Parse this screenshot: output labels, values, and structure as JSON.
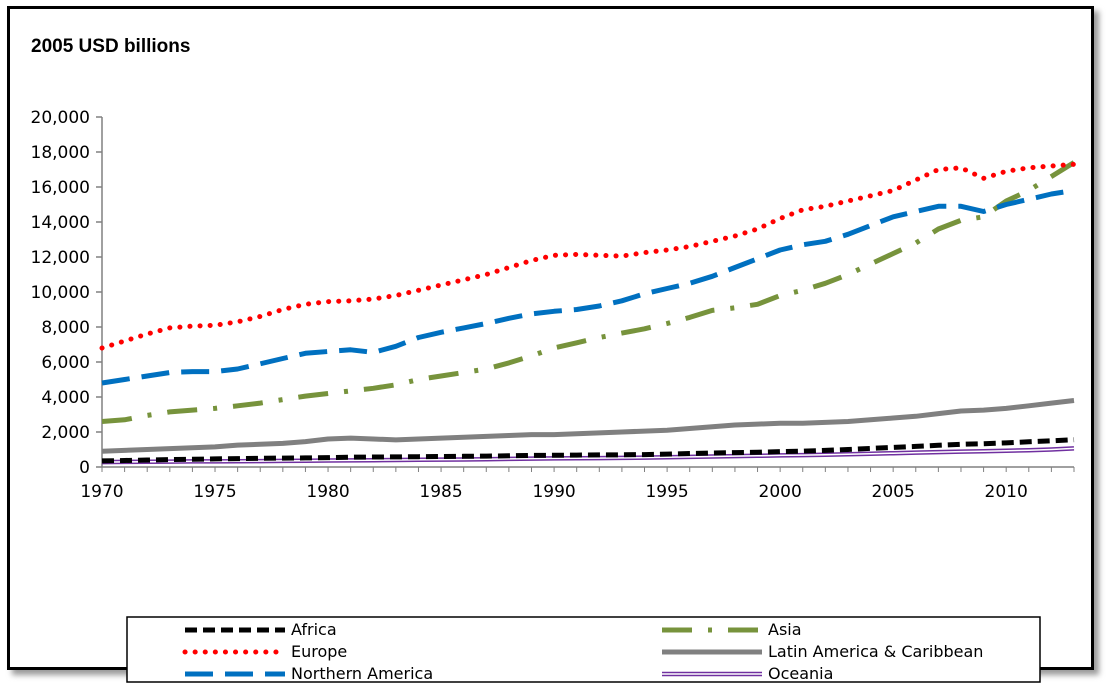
{
  "chart_data": {
    "type": "line",
    "title": "2005 USD billions",
    "xlabel": "",
    "ylabel": "",
    "xlim": [
      1970,
      2013
    ],
    "ylim": [
      0,
      20000
    ],
    "x_ticks": [
      1970,
      1975,
      1980,
      1985,
      1990,
      1995,
      2000,
      2005,
      2010
    ],
    "y_ticks": [
      0,
      2000,
      4000,
      6000,
      8000,
      10000,
      12000,
      14000,
      16000,
      18000,
      20000
    ],
    "y_tick_labels": [
      "0",
      "2,000",
      "4,000",
      "6,000",
      "8,000",
      "10,000",
      "12,000",
      "14,000",
      "16,000",
      "18,000",
      "20,000"
    ],
    "grid": false,
    "legend_position": "bottom",
    "x": [
      1970,
      1971,
      1972,
      1973,
      1974,
      1975,
      1976,
      1977,
      1978,
      1979,
      1980,
      1981,
      1982,
      1983,
      1984,
      1985,
      1986,
      1987,
      1988,
      1989,
      1990,
      1991,
      1992,
      1993,
      1994,
      1995,
      1996,
      1997,
      1998,
      1999,
      2000,
      2001,
      2002,
      2003,
      2004,
      2005,
      2006,
      2007,
      2008,
      2009,
      2010,
      2011,
      2012,
      2013
    ],
    "series": [
      {
        "name": "Africa",
        "color": "#000000",
        "style": "short-dash",
        "values": [
          350,
          370,
          400,
          420,
          440,
          460,
          480,
          500,
          510,
          520,
          540,
          560,
          570,
          580,
          590,
          600,
          610,
          620,
          640,
          660,
          670,
          680,
          690,
          700,
          710,
          740,
          770,
          800,
          820,
          840,
          880,
          910,
          950,
          1000,
          1060,
          1120,
          1180,
          1240,
          1300,
          1330,
          1380,
          1440,
          1500,
          1560
        ]
      },
      {
        "name": "Asia",
        "color": "#77933c",
        "style": "dash-dot",
        "values": [
          2600,
          2700,
          2950,
          3150,
          3250,
          3350,
          3500,
          3650,
          3850,
          4050,
          4200,
          4350,
          4500,
          4700,
          5000,
          5200,
          5400,
          5600,
          5950,
          6350,
          6800,
          7100,
          7400,
          7650,
          7900,
          8200,
          8550,
          8950,
          9100,
          9300,
          9800,
          10100,
          10500,
          11000,
          11600,
          12200,
          12800,
          13600,
          14100,
          14300,
          15200,
          15800,
          16600,
          17400
        ]
      },
      {
        "name": "Europe",
        "color": "#ff0000",
        "style": "dotted",
        "values": [
          6800,
          7200,
          7600,
          7950,
          8050,
          8100,
          8300,
          8600,
          9000,
          9300,
          9450,
          9500,
          9600,
          9800,
          10100,
          10400,
          10700,
          11000,
          11400,
          11800,
          12100,
          12150,
          12100,
          12050,
          12250,
          12400,
          12600,
          12900,
          13200,
          13600,
          14200,
          14700,
          14900,
          15200,
          15500,
          15800,
          16400,
          17000,
          17100,
          16500,
          16900,
          17100,
          17200,
          17300
        ]
      },
      {
        "name": "Latin America & Caribbean",
        "color": "#808080",
        "style": "solid-thick",
        "values": [
          900,
          950,
          1000,
          1050,
          1100,
          1150,
          1250,
          1300,
          1350,
          1450,
          1600,
          1650,
          1600,
          1550,
          1600,
          1650,
          1700,
          1750,
          1800,
          1850,
          1850,
          1900,
          1950,
          2000,
          2050,
          2100,
          2200,
          2300,
          2400,
          2450,
          2500,
          2500,
          2550,
          2600,
          2700,
          2800,
          2900,
          3050,
          3200,
          3250,
          3350,
          3500,
          3650,
          3800
        ]
      },
      {
        "name": "Northern America",
        "color": "#0070c0",
        "style": "long-dash",
        "values": [
          4800,
          5000,
          5200,
          5400,
          5450,
          5450,
          5600,
          5900,
          6200,
          6500,
          6600,
          6700,
          6550,
          6900,
          7400,
          7700,
          7950,
          8200,
          8500,
          8750,
          8900,
          9000,
          9200,
          9500,
          9900,
          10200,
          10500,
          10900,
          11400,
          11900,
          12400,
          12700,
          12900,
          13300,
          13800,
          14300,
          14600,
          14900,
          14900,
          14600,
          15000,
          15300,
          15600,
          15800
        ]
      },
      {
        "name": "Oceania",
        "color": "#7030a0",
        "style": "double",
        "values": [
          280,
          290,
          300,
          310,
          320,
          320,
          330,
          340,
          350,
          360,
          370,
          380,
          390,
          400,
          410,
          420,
          430,
          440,
          460,
          480,
          490,
          500,
          510,
          520,
          540,
          560,
          580,
          600,
          620,
          640,
          660,
          680,
          700,
          730,
          760,
          790,
          820,
          850,
          880,
          900,
          930,
          960,
          1000,
          1060
        ]
      }
    ]
  }
}
